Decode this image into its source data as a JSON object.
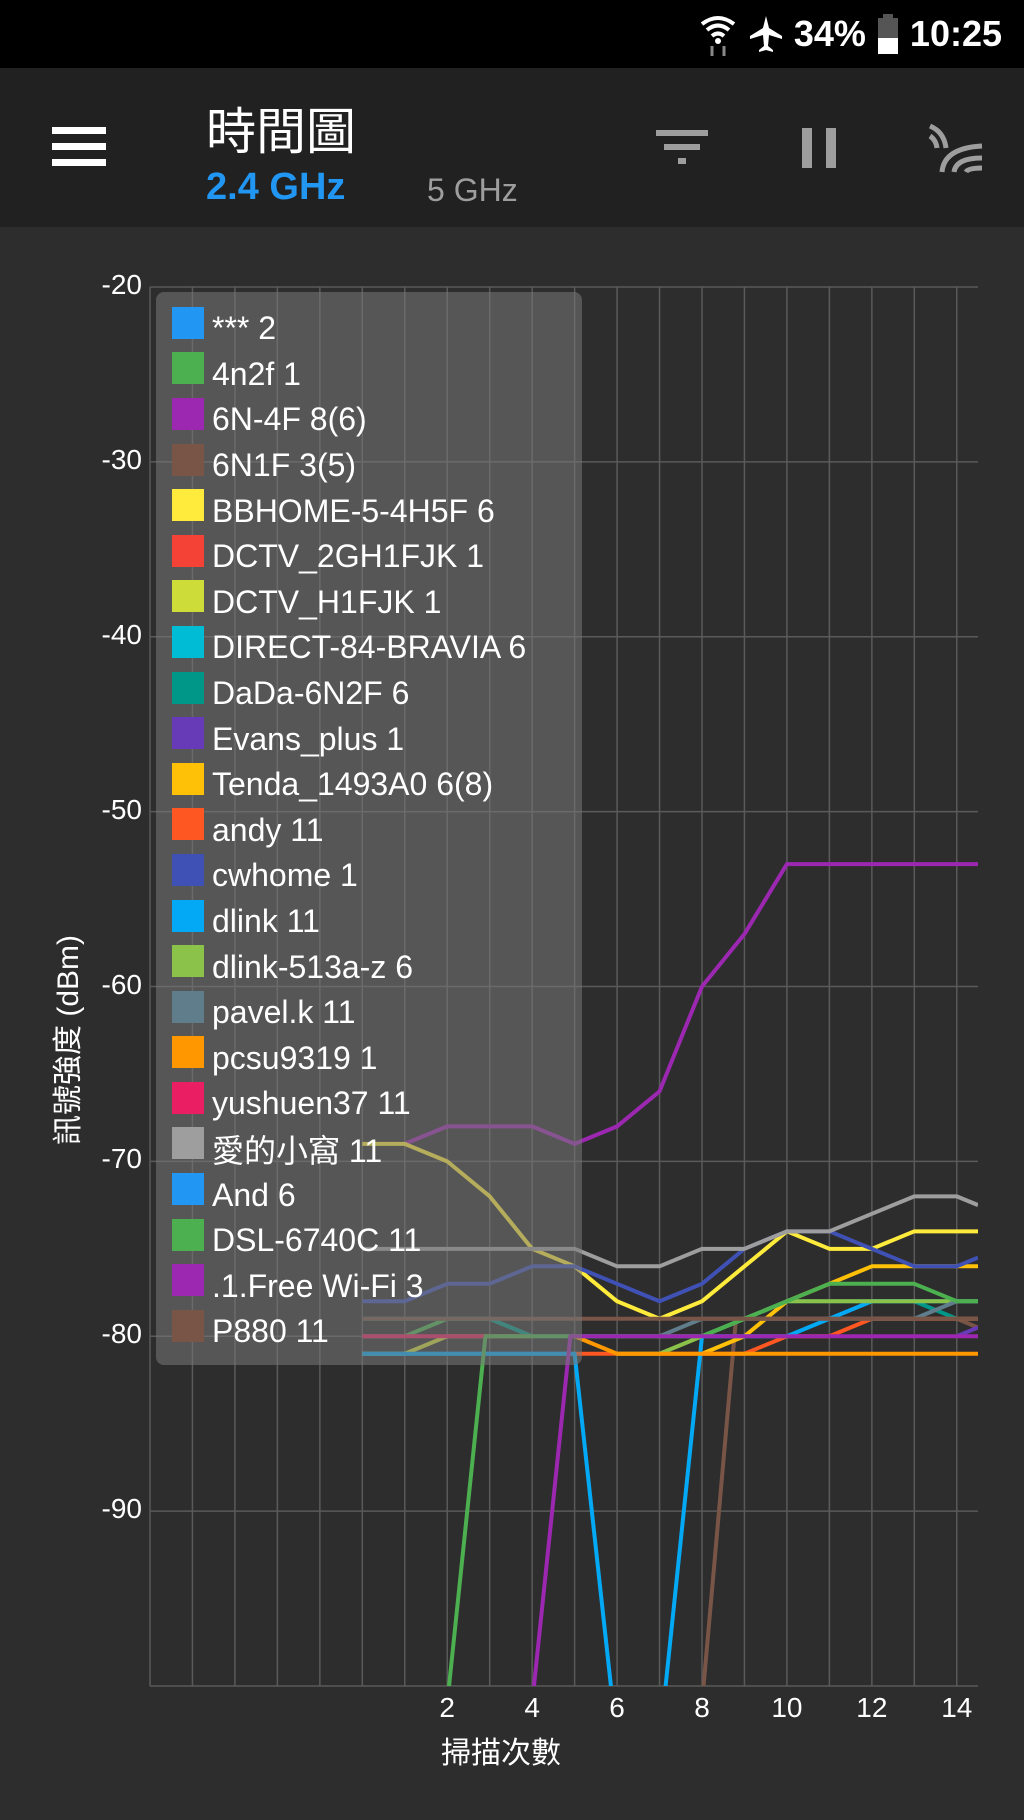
{
  "status": {
    "battery": "34%",
    "time": "10:25"
  },
  "header": {
    "title": "時間圖",
    "bands": [
      "2.4 GHz",
      "5 GHz"
    ],
    "active_band": "2.4 GHz",
    "icons": [
      "menu-icon",
      "filter-icon",
      "pause-icon",
      "scan-icon"
    ]
  },
  "colors": {
    "accent": "#2196f3",
    "appbar": "#212121",
    "background": "#2d2d2d"
  },
  "chart_data": {
    "type": "line",
    "xlabel": "掃描次數",
    "ylabel": "訊號強度 (dBm)",
    "xlim": [
      -5,
      14.5
    ],
    "ylim": [
      -100,
      -20
    ],
    "xticks": [
      2,
      4,
      6,
      8,
      10,
      12,
      14
    ],
    "yticks": [
      -20,
      -30,
      -40,
      -50,
      -60,
      -70,
      -80,
      -90
    ],
    "grid": true,
    "legend_position": "top-left",
    "series": [
      {
        "name": "*** 2",
        "color": "#2196f3",
        "points": [
          [
            0,
            -81
          ],
          [
            1,
            -81
          ],
          [
            2,
            -81
          ],
          [
            3,
            -81
          ],
          [
            4,
            -81
          ],
          [
            5,
            -81
          ]
        ]
      },
      {
        "name": "4n2f 1",
        "color": "#4caf50",
        "points": [
          [
            0,
            -80
          ],
          [
            1,
            -80
          ],
          [
            2,
            -79
          ],
          [
            3,
            -79
          ],
          [
            4,
            -80
          ]
        ]
      },
      {
        "name": "6N-4F 8(6)",
        "color": "#9c27b0",
        "points": [
          [
            1,
            -69
          ],
          [
            2,
            -68
          ],
          [
            3,
            -68
          ],
          [
            4,
            -68
          ],
          [
            5,
            -69
          ],
          [
            6,
            -68
          ],
          [
            7,
            -66
          ],
          [
            8,
            -60
          ],
          [
            9,
            -57
          ],
          [
            10,
            -53
          ],
          [
            11,
            -53
          ],
          [
            12,
            -53
          ],
          [
            13,
            -53
          ],
          [
            14,
            -53
          ],
          [
            14.5,
            -53
          ]
        ]
      },
      {
        "name": "6N1F 3(5)",
        "color": "#795548",
        "points": [
          [
            8,
            -101
          ],
          [
            8.8,
            -79
          ],
          [
            9,
            -79
          ],
          [
            10,
            -79
          ],
          [
            11,
            -79
          ],
          [
            12,
            -79
          ],
          [
            13,
            -79
          ],
          [
            14,
            -79
          ],
          [
            14.5,
            -79.5
          ]
        ]
      },
      {
        "name": "BBHOME-5-4H5F 6",
        "color": "#ffeb3b",
        "points": [
          [
            0,
            -69
          ],
          [
            1,
            -69
          ],
          [
            2,
            -70
          ],
          [
            3,
            -72
          ],
          [
            4,
            -75
          ],
          [
            5,
            -76
          ],
          [
            6,
            -78
          ],
          [
            7,
            -79
          ],
          [
            8,
            -78
          ],
          [
            9,
            -76
          ],
          [
            10,
            -74
          ],
          [
            11,
            -75
          ],
          [
            12,
            -75
          ],
          [
            13,
            -74
          ],
          [
            14,
            -74
          ],
          [
            14.5,
            -74
          ]
        ]
      },
      {
        "name": "DCTV_2GH1FJK 1",
        "color": "#f44336",
        "points": []
      },
      {
        "name": "DCTV_H1FJK 1",
        "color": "#cddc39",
        "points": [
          [
            0,
            -81
          ],
          [
            1,
            -81
          ],
          [
            2,
            -80
          ],
          [
            3,
            -80
          ],
          [
            4,
            -80
          ]
        ]
      },
      {
        "name": "DIRECT-84-BRAVIA 6",
        "color": "#00bcd4",
        "points": []
      },
      {
        "name": "DaDa-6N2F 6",
        "color": "#009688",
        "points": [
          [
            0,
            -79
          ],
          [
            1,
            -79
          ],
          [
            2,
            -79
          ],
          [
            3,
            -79
          ],
          [
            4,
            -80
          ],
          [
            5,
            -80
          ],
          [
            6,
            -80
          ],
          [
            7,
            -80
          ],
          [
            8,
            -80
          ],
          [
            9,
            -79
          ],
          [
            10,
            -78
          ],
          [
            11,
            -78
          ],
          [
            12,
            -78
          ],
          [
            13,
            -78
          ],
          [
            14,
            -79
          ],
          [
            14.5,
            -79
          ]
        ]
      },
      {
        "name": "Evans_plus 1",
        "color": "#673ab7",
        "points": [
          [
            14,
            -80
          ],
          [
            14.5,
            -79.5
          ]
        ]
      },
      {
        "name": "Tenda_1493A0 6(8)",
        "color": "#ffc107",
        "points": [
          [
            8,
            -81
          ],
          [
            9,
            -80
          ],
          [
            10,
            -78
          ],
          [
            11,
            -77
          ],
          [
            12,
            -76
          ],
          [
            13,
            -76
          ],
          [
            14,
            -76
          ],
          [
            14.5,
            -76
          ]
        ]
      },
      {
        "name": "andy 11",
        "color": "#ff5722",
        "points": [
          [
            5,
            -81
          ],
          [
            6,
            -81
          ],
          [
            7,
            -81
          ],
          [
            8,
            -81
          ],
          [
            9,
            -81
          ],
          [
            10,
            -80
          ],
          [
            11,
            -80
          ],
          [
            12,
            -79
          ],
          [
            13,
            -79
          ],
          [
            14,
            -79
          ],
          [
            14.5,
            -79
          ]
        ]
      },
      {
        "name": "cwhome 1",
        "color": "#3f51b5",
        "points": [
          [
            0,
            -78
          ],
          [
            1,
            -78
          ],
          [
            2,
            -77
          ],
          [
            3,
            -77
          ],
          [
            4,
            -76
          ],
          [
            5,
            -76
          ],
          [
            6,
            -77
          ],
          [
            7,
            -78
          ],
          [
            8,
            -77
          ],
          [
            9,
            -75
          ],
          [
            10,
            -74
          ],
          [
            11,
            -74
          ],
          [
            12,
            -75
          ],
          [
            13,
            -76
          ],
          [
            14,
            -76
          ],
          [
            14.5,
            -75.5
          ]
        ]
      },
      {
        "name": "dlink 11",
        "color": "#03a9f4",
        "points": [
          [
            0,
            -81
          ],
          [
            1,
            -81
          ],
          [
            2,
            -81
          ],
          [
            3,
            -81
          ],
          [
            4,
            -81
          ],
          [
            5,
            -81
          ],
          [
            5.9,
            -101
          ],
          [
            7.1,
            -101
          ],
          [
            8,
            -80
          ],
          [
            9,
            -80
          ],
          [
            10,
            -80
          ],
          [
            11,
            -79
          ],
          [
            12,
            -78
          ],
          [
            13,
            -78
          ],
          [
            14,
            -78
          ],
          [
            14.5,
            -78
          ]
        ]
      },
      {
        "name": "dlink-513a-z 6",
        "color": "#8bc34a",
        "points": [
          [
            6,
            -81
          ],
          [
            7,
            -81
          ],
          [
            8,
            -80
          ],
          [
            9,
            -79
          ],
          [
            10,
            -78
          ],
          [
            11,
            -78
          ],
          [
            12,
            -78
          ],
          [
            13,
            -78
          ],
          [
            14,
            -78
          ],
          [
            14.5,
            -78
          ]
        ]
      },
      {
        "name": "pavel.k 11",
        "color": "#607d8b",
        "points": [
          [
            7,
            -80
          ],
          [
            8,
            -79
          ],
          [
            9,
            -79
          ],
          [
            10,
            -79
          ],
          [
            11,
            -79
          ],
          [
            12,
            -79
          ],
          [
            13,
            -79
          ],
          [
            14,
            -78
          ],
          [
            14.5,
            -78
          ]
        ]
      },
      {
        "name": "pcsu9319 1",
        "color": "#ff9800",
        "points": [
          [
            5,
            -80
          ],
          [
            6,
            -81
          ],
          [
            7,
            -81
          ],
          [
            8,
            -81
          ],
          [
            9,
            -81
          ],
          [
            10,
            -81
          ],
          [
            11,
            -81
          ],
          [
            12,
            -81
          ],
          [
            13,
            -81
          ],
          [
            14,
            -81
          ],
          [
            14.5,
            -81
          ]
        ]
      },
      {
        "name": "yushuen37 11",
        "color": "#e91e63",
        "points": [
          [
            0,
            -80
          ],
          [
            1,
            -80
          ],
          [
            2,
            -80
          ],
          [
            3,
            -80
          ],
          [
            4,
            -80
          ]
        ]
      },
      {
        "name": "愛的小窩 11",
        "color": "#9e9e9e",
        "points": [
          [
            0,
            -75
          ],
          [
            1,
            -75
          ],
          [
            2,
            -75
          ],
          [
            3,
            -75
          ],
          [
            4,
            -75
          ],
          [
            5,
            -75
          ],
          [
            6,
            -76
          ],
          [
            7,
            -76
          ],
          [
            8,
            -75
          ],
          [
            9,
            -75
          ],
          [
            10,
            -74
          ],
          [
            11,
            -74
          ],
          [
            12,
            -73
          ],
          [
            13,
            -72
          ],
          [
            14,
            -72
          ],
          [
            14.5,
            -72.5
          ]
        ]
      },
      {
        "name": "And 6",
        "color": "#2196f3",
        "points": []
      },
      {
        "name": "DSL-6740C 11",
        "color": "#4caf50",
        "points": [
          [
            2,
            -101
          ],
          [
            2.9,
            -80
          ],
          [
            3,
            -80
          ],
          [
            4,
            -80
          ],
          [
            5,
            -80
          ],
          [
            6,
            -80
          ],
          [
            7,
            -80
          ],
          [
            8,
            -80
          ],
          [
            9,
            -79
          ],
          [
            10,
            -78
          ],
          [
            11,
            -77
          ],
          [
            12,
            -77
          ],
          [
            13,
            -77
          ],
          [
            14,
            -78
          ],
          [
            14.5,
            -78
          ]
        ]
      },
      {
        "name": ".1.Free Wi-Fi 3",
        "color": "#9c27b0",
        "points": [
          [
            4,
            -101
          ],
          [
            4.9,
            -80
          ],
          [
            5,
            -80
          ],
          [
            6,
            -80
          ],
          [
            7,
            -80
          ],
          [
            8,
            -80
          ],
          [
            9,
            -80
          ],
          [
            10,
            -80
          ],
          [
            11,
            -80
          ],
          [
            12,
            -80
          ],
          [
            13,
            -80
          ],
          [
            14,
            -80
          ],
          [
            14.5,
            -80
          ]
        ]
      },
      {
        "name": "P880 11",
        "color": "#795548",
        "points": [
          [
            0,
            -79
          ],
          [
            1,
            -79
          ],
          [
            2,
            -79
          ],
          [
            3,
            -79
          ],
          [
            4,
            -79
          ],
          [
            5,
            -79
          ],
          [
            6,
            -79
          ],
          [
            7,
            -79
          ],
          [
            8,
            -79
          ],
          [
            9,
            -79
          ],
          [
            10,
            -79
          ],
          [
            11,
            -79
          ],
          [
            12,
            -79
          ],
          [
            13,
            -79
          ],
          [
            14,
            -79
          ],
          [
            14.5,
            -79
          ]
        ]
      }
    ]
  }
}
